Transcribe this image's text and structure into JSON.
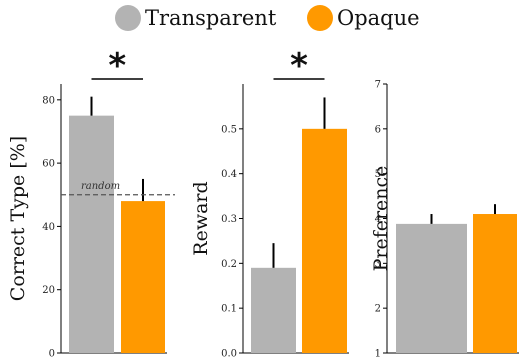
{
  "legend": [
    {
      "label": "Transparent",
      "color": "#b3b3b3"
    },
    {
      "label": "Opaque",
      "color": "#ff9900"
    }
  ],
  "chart_data": [
    {
      "type": "bar",
      "ylabel": "Correct Type [%]",
      "ylim": [
        0,
        85
      ],
      "yticks": [
        0,
        20,
        40,
        60,
        80
      ],
      "series": [
        {
          "name": "Transparent",
          "value": 75,
          "error": 6
        },
        {
          "name": "Opaque",
          "value": 48,
          "error": 7
        }
      ],
      "reference_line": {
        "value": 50,
        "label": "random"
      },
      "significance": "*"
    },
    {
      "type": "bar",
      "ylabel": "Reward",
      "ylim": [
        0,
        0.6
      ],
      "yticks": [
        0,
        0.1,
        0.2,
        0.3,
        0.4,
        0.5
      ],
      "series": [
        {
          "name": "Transparent",
          "value": 0.19,
          "error": 0.055
        },
        {
          "name": "Opaque",
          "value": 0.5,
          "error": 0.07
        }
      ],
      "significance": "*"
    },
    {
      "type": "bar",
      "ylabel": "Preference",
      "ylim": [
        1,
        7
      ],
      "yticks": [
        1,
        2,
        3,
        4,
        5,
        6,
        7
      ],
      "series": [
        {
          "name": "Transparent",
          "value": 3.88,
          "error": 0.22
        },
        {
          "name": "Opaque",
          "value": 4.1,
          "error": 0.22
        }
      ],
      "significance": ""
    }
  ]
}
